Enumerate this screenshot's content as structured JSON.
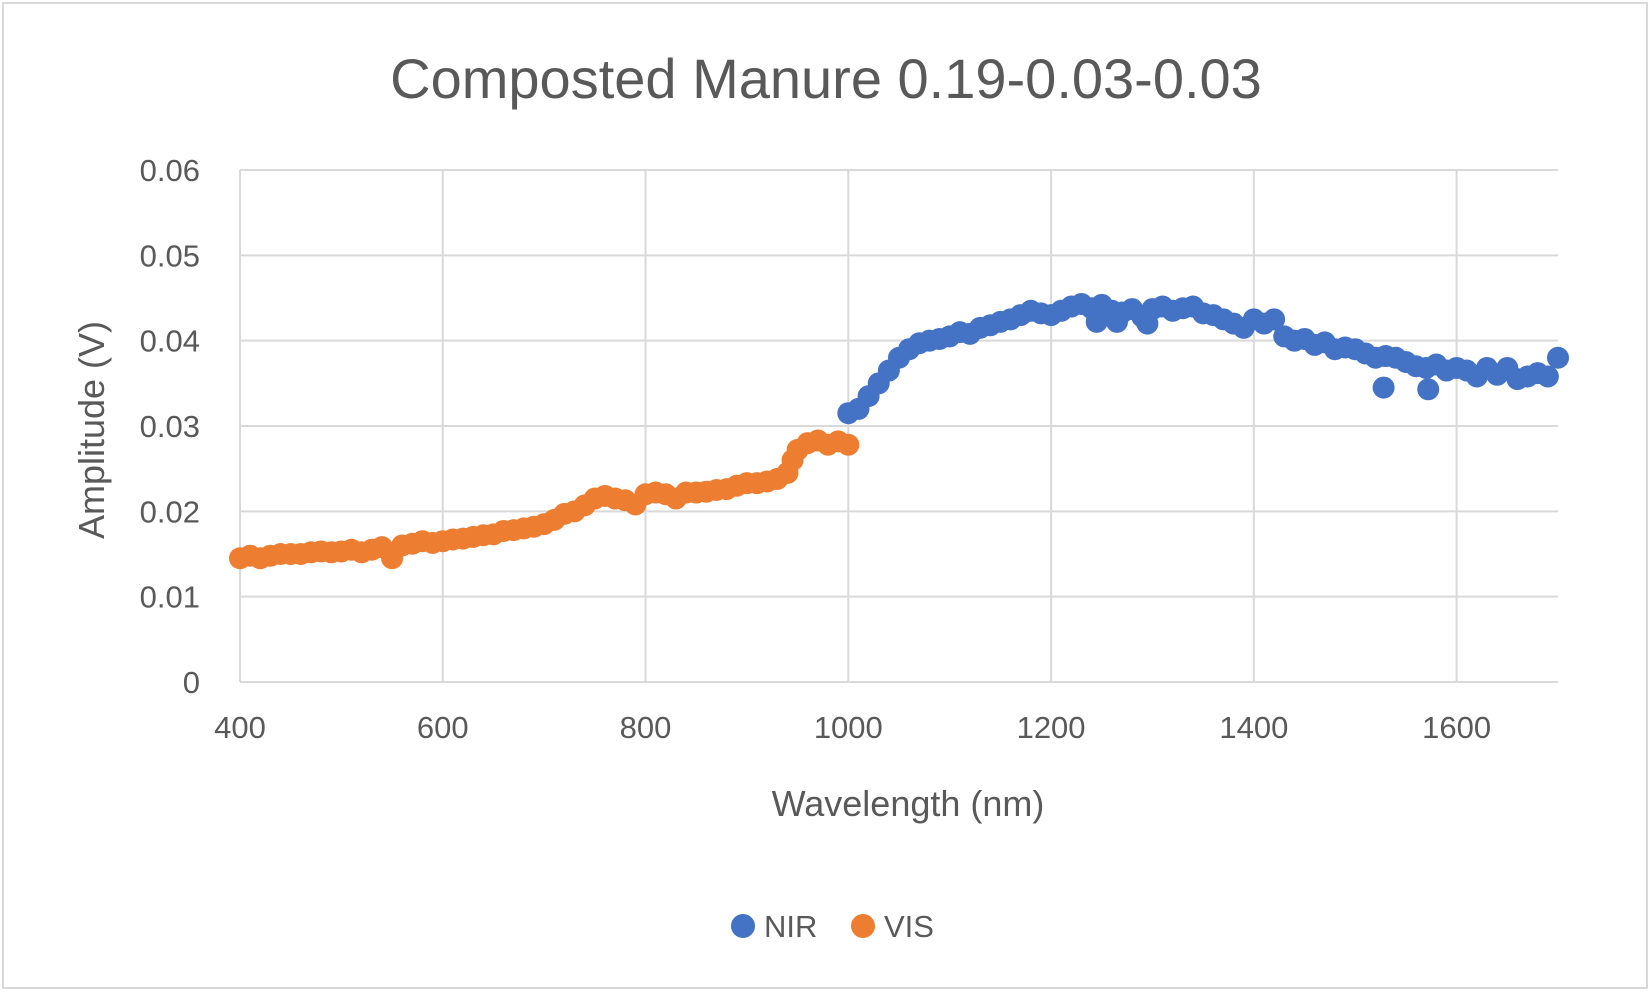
{
  "chart_data": {
    "type": "scatter",
    "title": "Composted Manure 0.19-0.03-0.03",
    "xlabel": "Wavelength (nm)",
    "ylabel": "Amplitude (V)",
    "xlim": [
      400,
      1700
    ],
    "ylim": [
      0,
      0.06
    ],
    "x_ticks": [
      "400",
      "600",
      "800",
      "1000",
      "1200",
      "1400",
      "1600"
    ],
    "y_ticks": [
      "0",
      "0.01",
      "0.02",
      "0.03",
      "0.04",
      "0.05",
      "0.06"
    ],
    "grid": true,
    "legend_position": "bottom",
    "series": [
      {
        "name": "NIR",
        "color": "#4472c4",
        "x": [
          1000,
          1010,
          1020,
          1030,
          1040,
          1050,
          1060,
          1070,
          1080,
          1090,
          1100,
          1110,
          1120,
          1130,
          1140,
          1150,
          1160,
          1170,
          1180,
          1190,
          1200,
          1210,
          1220,
          1230,
          1240,
          1245,
          1250,
          1260,
          1265,
          1270,
          1280,
          1290,
          1295,
          1300,
          1310,
          1320,
          1330,
          1340,
          1350,
          1360,
          1370,
          1380,
          1390,
          1400,
          1410,
          1420,
          1430,
          1440,
          1450,
          1460,
          1470,
          1480,
          1490,
          1500,
          1510,
          1520,
          1528,
          1530,
          1540,
          1550,
          1560,
          1570,
          1572,
          1580,
          1590,
          1600,
          1610,
          1620,
          1630,
          1640,
          1650,
          1660,
          1670,
          1680,
          1690,
          1700
        ],
        "y": [
          0.0315,
          0.032,
          0.0335,
          0.035,
          0.0365,
          0.038,
          0.039,
          0.0397,
          0.04,
          0.0402,
          0.0405,
          0.041,
          0.0408,
          0.0415,
          0.0418,
          0.0422,
          0.0425,
          0.043,
          0.0435,
          0.0432,
          0.043,
          0.0435,
          0.044,
          0.0443,
          0.0438,
          0.0422,
          0.0442,
          0.0435,
          0.0422,
          0.0433,
          0.0437,
          0.0428,
          0.042,
          0.0437,
          0.044,
          0.0435,
          0.0438,
          0.044,
          0.0432,
          0.043,
          0.0425,
          0.042,
          0.0415,
          0.0425,
          0.042,
          0.0425,
          0.0405,
          0.04,
          0.0402,
          0.0395,
          0.0398,
          0.039,
          0.0392,
          0.039,
          0.0385,
          0.038,
          0.0345,
          0.0382,
          0.038,
          0.0375,
          0.037,
          0.0368,
          0.0343,
          0.0372,
          0.0365,
          0.0368,
          0.0365,
          0.0358,
          0.0368,
          0.036,
          0.0368,
          0.0355,
          0.0358,
          0.0362,
          0.0358,
          0.038
        ]
      },
      {
        "name": "VIS",
        "color": "#ed7d31",
        "x": [
          400,
          410,
          420,
          430,
          440,
          450,
          460,
          470,
          480,
          490,
          500,
          510,
          520,
          530,
          540,
          550,
          560,
          570,
          580,
          590,
          600,
          610,
          620,
          630,
          640,
          650,
          660,
          670,
          680,
          690,
          700,
          710,
          720,
          730,
          740,
          750,
          760,
          770,
          780,
          790,
          800,
          810,
          820,
          830,
          840,
          850,
          860,
          870,
          880,
          890,
          900,
          910,
          920,
          930,
          940,
          945,
          950,
          960,
          970,
          980,
          990,
          1000
        ],
        "y": [
          0.0145,
          0.0148,
          0.0145,
          0.0148,
          0.015,
          0.015,
          0.015,
          0.0152,
          0.0153,
          0.0152,
          0.0153,
          0.0155,
          0.0152,
          0.0155,
          0.0158,
          0.0145,
          0.016,
          0.0162,
          0.0165,
          0.0163,
          0.0165,
          0.0167,
          0.0168,
          0.017,
          0.0172,
          0.0173,
          0.0177,
          0.0178,
          0.018,
          0.0182,
          0.0185,
          0.019,
          0.0197,
          0.02,
          0.0207,
          0.0215,
          0.0218,
          0.0215,
          0.0213,
          0.0208,
          0.022,
          0.0222,
          0.022,
          0.0215,
          0.0222,
          0.0222,
          0.0223,
          0.0225,
          0.0226,
          0.023,
          0.0233,
          0.0233,
          0.0235,
          0.0238,
          0.0245,
          0.026,
          0.0272,
          0.028,
          0.0283,
          0.0278,
          0.0282,
          0.0278
        ]
      }
    ]
  }
}
